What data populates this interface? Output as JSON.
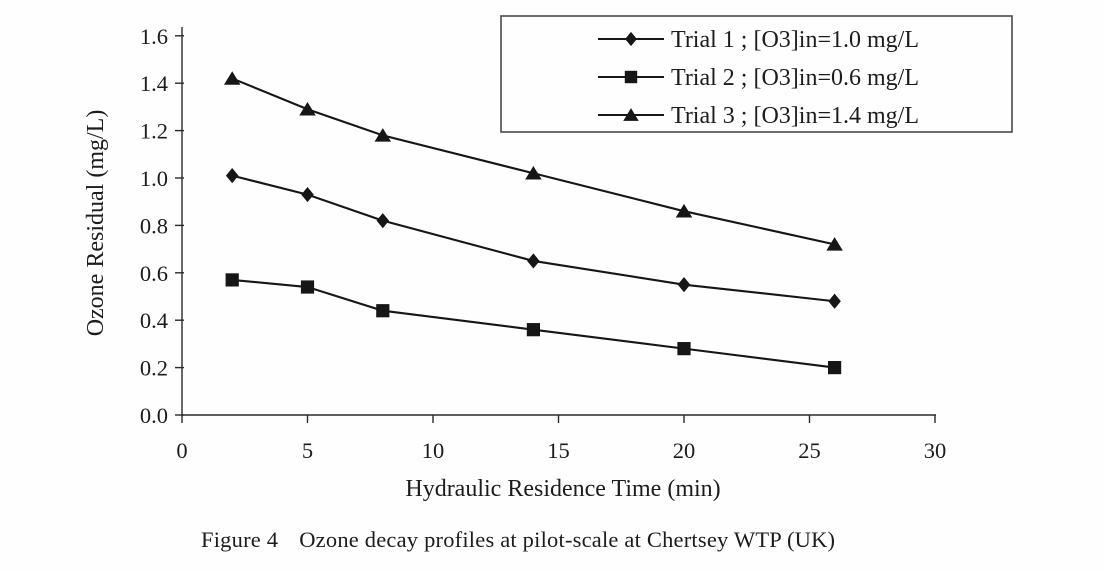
{
  "page": {
    "background": "#fefefe",
    "ink": "#1a1a1a"
  },
  "chart_data": {
    "type": "line",
    "title": "",
    "xlabel": "Hydraulic Residence Time (min)",
    "ylabel": "Ozone Residual (mg/L)",
    "xlim": [
      0,
      30
    ],
    "ylim": [
      0.0,
      1.6
    ],
    "x_ticks": [
      0,
      5,
      10,
      15,
      20,
      25,
      30
    ],
    "y_ticks": [
      0.0,
      0.2,
      0.4,
      0.6,
      0.8,
      1.0,
      1.2,
      1.4,
      1.6
    ],
    "grid": false,
    "legend_position": "top-right",
    "x": [
      2,
      5,
      8,
      14,
      20,
      26
    ],
    "series": [
      {
        "name": "Trial 1 ; [O3]in=1.0 mg/L",
        "marker": "diamond",
        "values": [
          1.01,
          0.93,
          0.82,
          0.65,
          0.55,
          0.48
        ]
      },
      {
        "name": "Trial 2 ; [O3]in=0.6 mg/L",
        "marker": "square",
        "values": [
          0.57,
          0.54,
          0.44,
          0.36,
          0.28,
          0.2
        ]
      },
      {
        "name": "Trial 3 ; [O3]in=1.4 mg/L",
        "marker": "triangle",
        "values": [
          1.42,
          1.29,
          1.18,
          1.02,
          0.86,
          0.72
        ]
      }
    ],
    "series_color": "#161616"
  },
  "caption": {
    "label": "Figure 4",
    "text": "Ozone decay profiles at pilot-scale at Chertsey WTP (UK)"
  }
}
